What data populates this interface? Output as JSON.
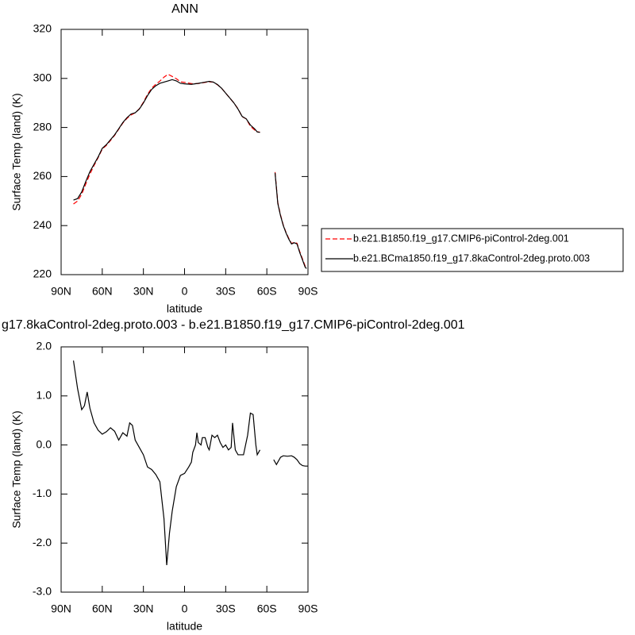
{
  "chart_data": [
    {
      "type": "line",
      "title": "ANN",
      "x_label": "latitude",
      "y_label": "Surface Temp (land) (K)",
      "x": [
        81,
        78,
        75,
        72,
        69,
        66,
        63,
        60,
        57,
        54,
        51,
        48,
        45,
        42,
        39,
        36,
        33,
        30,
        27,
        24,
        21,
        18,
        15,
        12,
        9,
        6,
        3,
        0,
        -5,
        -10,
        -15,
        -18,
        -21,
        -24,
        -27,
        -30,
        -33,
        -36,
        -39,
        -42,
        -45,
        -48,
        -51,
        -53,
        -55,
        -60,
        -66,
        -68,
        -70,
        -72,
        -74,
        -76,
        -78,
        -80,
        -82,
        -84,
        -86,
        -88,
        -89
      ],
      "xlim": [
        90,
        -90
      ],
      "xticks": [
        {
          "value": 90,
          "label": "90N"
        },
        {
          "value": 60,
          "label": "60N"
        },
        {
          "value": 30,
          "label": "30N"
        },
        0,
        {
          "value": -30,
          "label": "30S"
        },
        {
          "value": -60,
          "label": "60S"
        },
        {
          "value": -90,
          "label": "90S"
        }
      ],
      "ylim": [
        220,
        320
      ],
      "yticks": [
        220,
        240,
        260,
        280,
        300,
        320
      ],
      "legend": "right",
      "series": [
        {
          "name": "b.e21.B1850.f19_g17.CMIP6-piControl-2deg.001",
          "color": "#ff0000",
          "dashed": true,
          "values": [
            248.8,
            250,
            252.8,
            257,
            261,
            264.5,
            267.7,
            271.2,
            272.7,
            274.7,
            276.8,
            279.3,
            281.8,
            283.7,
            285.1,
            286,
            287.6,
            290.3,
            293.5,
            296,
            297.6,
            298.9,
            300.5,
            301.7,
            300.8,
            299.9,
            298.6,
            298.4,
            297.9,
            297.9,
            298.4,
            298.6,
            298.5,
            297.4,
            296,
            294,
            292,
            290,
            287.6,
            284.4,
            283.5,
            280.5,
            279,
            278.2,
            278.1,
            null,
            261.8,
            249.4,
            244.3,
            240.2,
            237.2,
            234.8,
            232.7,
            233.2,
            232.8,
            229.4,
            226.4,
            223.4,
            222.9
          ]
        },
        {
          "name": "b.e21.BCma1850.f19_g17.8kaControl-2deg.proto.003",
          "color": "#000000",
          "dashed": false,
          "values": [
            250.4,
            251,
            253.7,
            258,
            262,
            265,
            268,
            271.5,
            273,
            275,
            277,
            279.5,
            282,
            284,
            285.5,
            286,
            287.5,
            290,
            293,
            295.5,
            297,
            298,
            298.5,
            299,
            299.5,
            299,
            298,
            297.8,
            297.6,
            298,
            298.5,
            298.8,
            298.5,
            297.5,
            296,
            294,
            292,
            290,
            287.5,
            284.5,
            283.5,
            281,
            279.5,
            278.2,
            278,
            null,
            261.5,
            249,
            244,
            240,
            237,
            234.5,
            232.5,
            233,
            232.5,
            229,
            226,
            223,
            222.5
          ]
        }
      ]
    },
    {
      "type": "line",
      "title": "g17.8kaControl-2deg.proto.003 - b.e21.B1850.f19_g17.CMIP6-piControl-2deg.001",
      "x_label": "latitude",
      "y_label": "Surface Temp (land) (K)",
      "x": [
        81,
        78,
        75,
        73,
        71,
        69,
        66,
        63,
        60,
        57,
        54,
        51,
        48,
        45,
        42,
        40,
        38,
        36,
        33,
        30,
        27,
        24,
        21,
        18,
        15,
        13,
        11,
        9,
        6,
        3,
        0,
        -3,
        -5,
        -6,
        -8,
        -9,
        -10,
        -12,
        -13,
        -15,
        -17,
        -18,
        -20,
        -22,
        -24,
        -26,
        -28,
        -30,
        -32,
        -34,
        -35,
        -37,
        -39,
        -41,
        -43,
        -46,
        -48,
        -50,
        -52,
        -53,
        -55,
        -60,
        -65,
        -67,
        -70,
        -72,
        -75,
        -78,
        -80,
        -82,
        -84,
        -86,
        -88,
        -90
      ],
      "xlim": [
        90,
        -90
      ],
      "xticks": [
        {
          "value": 90,
          "label": "90N"
        },
        {
          "value": 60,
          "label": "60N"
        },
        {
          "value": 30,
          "label": "30N"
        },
        0,
        {
          "value": -30,
          "label": "30S"
        },
        {
          "value": -60,
          "label": "60S"
        },
        {
          "value": -90,
          "label": "90S"
        }
      ],
      "ylim": [
        -3,
        2
      ],
      "yticks": [
        {
          "value": -3,
          "label": "-3.0"
        },
        {
          "value": -2,
          "label": "-2.0"
        },
        {
          "value": -1,
          "label": "-1.0"
        },
        {
          "value": 0,
          "label": "0.0"
        },
        {
          "value": 1,
          "label": "1.0"
        },
        {
          "value": 2,
          "label": "2.0"
        }
      ],
      "series": [
        {
          "color": "#000000",
          "dashed": false,
          "values": [
            1.72,
            1.15,
            0.72,
            0.8,
            1.08,
            0.75,
            0.45,
            0.3,
            0.22,
            0.27,
            0.35,
            0.28,
            0.1,
            0.25,
            0.18,
            0.45,
            0.4,
            0.1,
            -0.05,
            -0.2,
            -0.45,
            -0.5,
            -0.6,
            -0.75,
            -1.5,
            -2.45,
            -1.8,
            -1.35,
            -0.85,
            -0.62,
            -0.58,
            -0.45,
            -0.35,
            -0.15,
            0.0,
            0.25,
            0.05,
            0.0,
            0.15,
            0.15,
            -0.05,
            -0.1,
            0.2,
            0.15,
            0.2,
            0.05,
            -0.05,
            0.0,
            -0.1,
            -0.05,
            0.45,
            -0.1,
            -0.2,
            -0.2,
            -0.2,
            0.2,
            0.65,
            0.62,
            0.0,
            -0.2,
            -0.1,
            null,
            -0.3,
            -0.4,
            -0.25,
            -0.22,
            -0.23,
            -0.22,
            -0.25,
            -0.3,
            -0.38,
            -0.42,
            -0.43,
            -0.43
          ]
        }
      ]
    }
  ]
}
